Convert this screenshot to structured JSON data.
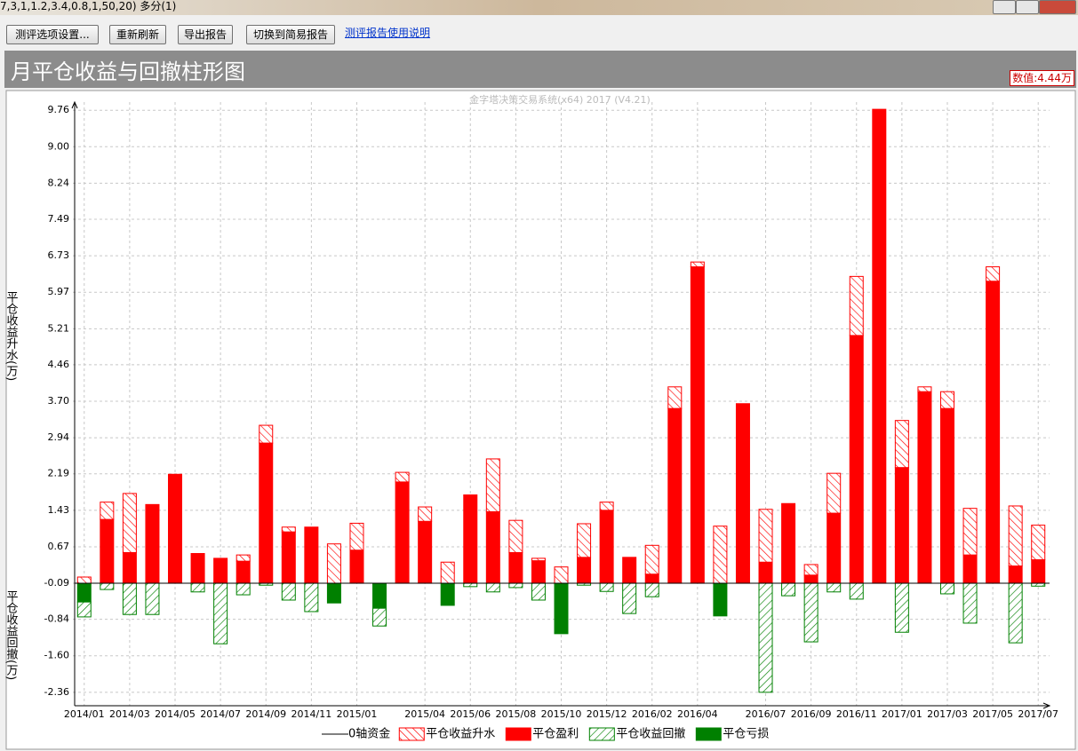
{
  "window": {
    "title": "7,3,1,1.2,3.4,0.8,1,50,20) 多分(1)"
  },
  "toolbar": {
    "buttons": [
      "测评选项设置...",
      "重新刷新",
      "导出报告",
      "切换到简易报告"
    ],
    "link": "测评报告使用说明"
  },
  "header": {
    "value_readout": "数值:4.44万"
  },
  "chart_data": {
    "type": "bar",
    "title": "月平仓收益与回撤柱形图",
    "watermark": "金字塔决策交易系统(x64) 2017 (V4.21)",
    "ylabel_upper": "平仓收益升水(万)",
    "ylabel_lower": "平仓收益回撤(万)",
    "zero_axis": {
      "name": "0轴资金",
      "value": -0.09,
      "color": "#000000"
    },
    "categories": [
      "2014/01",
      null,
      "2014/03",
      null,
      "2014/05",
      null,
      "2014/07",
      null,
      "2014/09",
      null,
      "2014/11",
      null,
      "2015/01",
      null,
      null,
      "2015/04",
      null,
      "2015/06",
      null,
      "2015/08",
      null,
      "2015/10",
      null,
      "2015/12",
      null,
      "2016/02",
      null,
      "2016/04",
      null,
      null,
      "2016/07",
      null,
      "2016/09",
      null,
      "2016/11",
      null,
      "2017/01",
      null,
      "2017/03",
      null,
      "2017/05",
      null,
      "2017/07"
    ],
    "series": [
      {
        "name": "平仓收益升水",
        "color": "#ff0000",
        "hatched": true,
        "stack": "up",
        "values": [
          0.13,
          0.36,
          1.23,
          0,
          0,
          0,
          0,
          0.13,
          0.37,
          0.1,
          0,
          0.82,
          0.56,
          0,
          0.2,
          0.3,
          0.44,
          0,
          1.1,
          0.67,
          0.05,
          0.34,
          0.7,
          0.17,
          0,
          0.6,
          0.45,
          0.1,
          1.19,
          0,
          1.1,
          0,
          0.22,
          0.83,
          1.23,
          0,
          0.98,
          0.1,
          0.35,
          0.97,
          0.3,
          1.25,
          0.72
        ]
      },
      {
        "name": "平仓盈利",
        "color": "#ff0000",
        "hatched": false,
        "stack": "up",
        "values": [
          0,
          1.33,
          0.64,
          1.64,
          2.27,
          0.62,
          0.52,
          0.46,
          2.92,
          1.07,
          1.17,
          0,
          0.69,
          0,
          2.11,
          1.29,
          0,
          1.84,
          1.49,
          0.64,
          0.47,
          0,
          0.54,
          1.52,
          0.54,
          0.19,
          3.64,
          6.59,
          0,
          3.74,
          0.44,
          1.66,
          0.17,
          1.46,
          5.16,
          9.87,
          2.41,
          3.99,
          3.64,
          0.59,
          6.29,
          0.36,
          0.49
        ]
      },
      {
        "name": "平仓收益回撤",
        "color": "#008000",
        "hatched": true,
        "stack": "down",
        "values": [
          -0.31,
          -0.13,
          -0.65,
          -0.65,
          0,
          -0.18,
          -1.26,
          -0.24,
          -0.04,
          -0.35,
          -0.59,
          0,
          0,
          -0.37,
          0,
          0,
          0,
          -0.07,
          -0.18,
          -0.09,
          -0.35,
          0,
          -0.04,
          -0.17,
          -0.63,
          -0.28,
          0,
          0,
          0,
          0,
          -2.27,
          -0.26,
          -1.22,
          -0.18,
          -0.33,
          0,
          -1.02,
          0,
          -0.22,
          -0.83,
          0,
          -1.24,
          -0.06
        ]
      },
      {
        "name": "平仓亏损",
        "color": "#008000",
        "hatched": false,
        "stack": "down",
        "values": [
          -0.39,
          0,
          0,
          0,
          0,
          0,
          0,
          0,
          0,
          0,
          0,
          -0.41,
          0,
          -0.52,
          0,
          0,
          -0.46,
          0,
          0,
          0,
          0,
          -1.05,
          0,
          0,
          0,
          0,
          0,
          0,
          -0.68,
          0,
          0,
          0,
          0,
          0,
          0,
          0,
          0,
          0,
          0,
          0,
          0,
          0,
          0
        ]
      }
    ],
    "ylim": [
      -2.64,
      9.93
    ],
    "yticks": [
      9.76,
      {
        "value": 9,
        "label": "9.00"
      },
      8.24,
      7.49,
      6.73,
      5.97,
      5.21,
      4.46,
      {
        "value": 3.7,
        "label": "3.70"
      },
      2.94,
      2.19,
      1.43,
      0.67,
      -0.09,
      -0.84,
      {
        "value": -1.6,
        "label": "-1.60"
      },
      -2.36
    ],
    "grid": true
  }
}
